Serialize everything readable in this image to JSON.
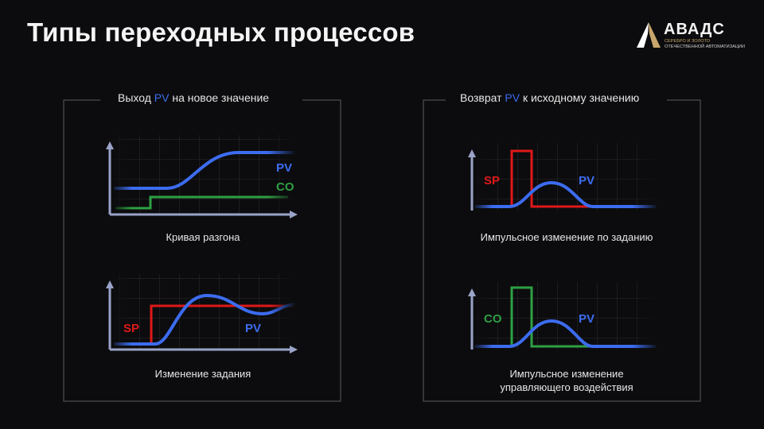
{
  "title": "Типы переходных процессов",
  "logo": {
    "name": "АВАДС",
    "line1": "СЕРЕБРО И ЗОЛОТО",
    "line2": "ОТЕЧЕСТВЕННОЙ АВТОМАТИЗАЦИИ"
  },
  "colors": {
    "pv": "#3c6cf0",
    "sp": "#e01818",
    "co": "#2ea043",
    "axis": "#9aa3c8"
  },
  "left_panel": {
    "title_before": "Выход ",
    "title_pv": "PV",
    "title_after": " на новое значение",
    "charts": [
      {
        "caption": "Кривая разгона",
        "labels": [
          "PV",
          "CO"
        ]
      },
      {
        "caption": "Изменение задания",
        "labels": [
          "SP",
          "PV"
        ]
      }
    ]
  },
  "right_panel": {
    "title_before": "Возврат ",
    "title_pv": "PV",
    "title_after": " к исходному значению",
    "charts": [
      {
        "caption": "Импульсное изменение по заданию",
        "labels": [
          "SP",
          "PV"
        ]
      },
      {
        "caption_line1": "Импульсное изменение",
        "caption_line2": "управляющего воздействия",
        "labels": [
          "CO",
          "PV"
        ]
      }
    ]
  }
}
